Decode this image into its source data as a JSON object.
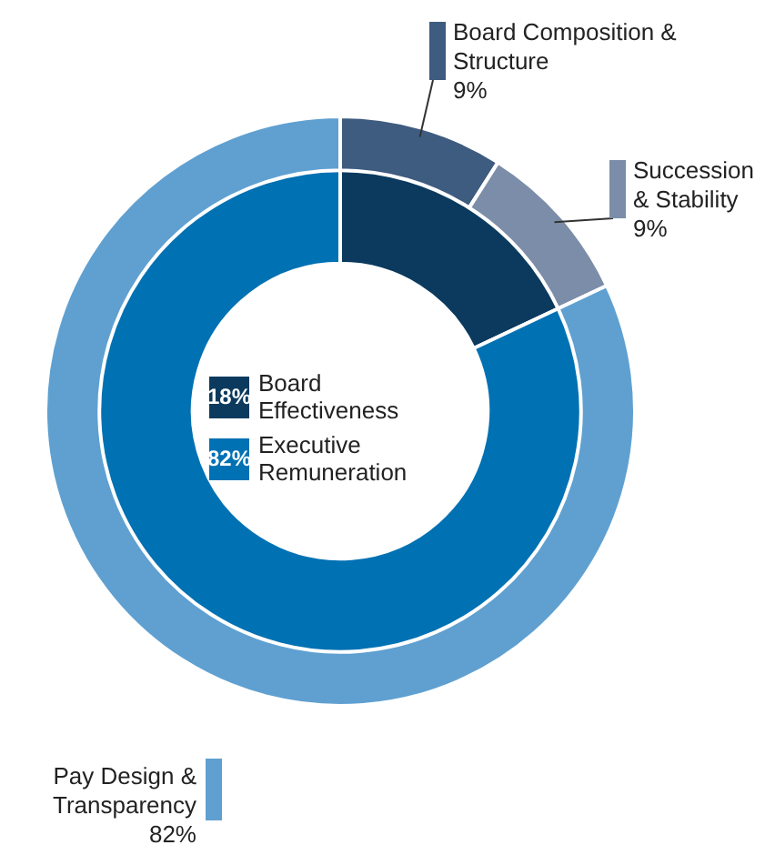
{
  "chart_data": [
    {
      "type": "donut",
      "categories": [
        "Board Effectiveness",
        "Executive Remuneration"
      ],
      "values": [
        18,
        82
      ],
      "value_labels": [
        "18%",
        "82%"
      ],
      "colors": [
        "#0b3a5e",
        "#0071b3"
      ],
      "legend": "center"
    },
    {
      "type": "donut",
      "categories": [
        "Board Composition & Structure",
        "Succession & Stability",
        "Pay Design & Transparency"
      ],
      "values": [
        9,
        9,
        82
      ],
      "value_labels": [
        "9%",
        "9%",
        "82%"
      ],
      "colors": [
        "#3e5b80",
        "#7b8da8",
        "#5fa0d1"
      ]
    }
  ]
}
